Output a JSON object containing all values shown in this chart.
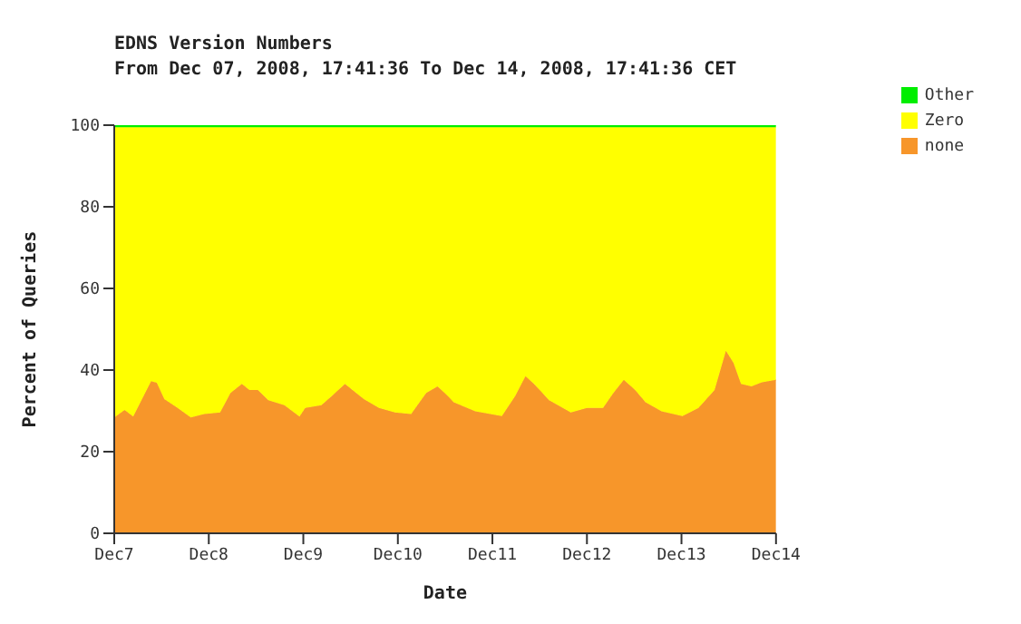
{
  "chart_data": {
    "type": "area",
    "title": "EDNS Version Numbers",
    "subtitle": "From Dec 07, 2008, 17:41:36 To Dec 14, 2008, 17:41:36 CET",
    "xlabel": "Date",
    "ylabel": "Percent of Queries",
    "stacked": true,
    "x": [
      "2008-12-07T00:00",
      "2008-12-07T02:38",
      "2008-12-07T04:48",
      "2008-12-07T07:26",
      "2008-12-07T09:22",
      "2008-12-07T10:48",
      "2008-12-07T12:43",
      "2008-12-07T16:05",
      "2008-12-07T19:26",
      "2008-12-07T22:48",
      "2008-12-08T02:53",
      "2008-12-08T05:31",
      "2008-12-08T08:24",
      "2008-12-08T10:19",
      "2008-12-08T12:29",
      "2008-12-08T15:07",
      "2008-12-08T19:12",
      "2008-12-08T23:02",
      "2008-12-09T00:29",
      "2008-12-09T04:34",
      "2008-12-09T07:12",
      "2008-12-09T10:34",
      "2008-12-09T12:29",
      "2008-12-09T15:22",
      "2008-12-09T19:12",
      "2008-12-09T23:17",
      "2008-12-10T03:22",
      "2008-12-10T07:12",
      "2008-12-10T10:05",
      "2008-12-10T12:43",
      "2008-12-10T14:10",
      "2008-12-10T19:41",
      "2008-12-11T02:24",
      "2008-12-11T05:46",
      "2008-12-11T08:24",
      "2008-12-11T10:34",
      "2008-12-11T14:24",
      "2008-12-11T19:55",
      "2008-12-12T00:00",
      "2008-12-12T04:05",
      "2008-12-12T06:43",
      "2008-12-12T09:22",
      "2008-12-12T12:14",
      "2008-12-12T14:53",
      "2008-12-12T18:58",
      "2008-12-13T00:14",
      "2008-12-13T04:19",
      "2008-12-13T08:24",
      "2008-12-13T11:17",
      "2008-12-13T13:12",
      "2008-12-13T15:07",
      "2008-12-13T17:46",
      "2008-12-13T20:24",
      "2008-12-14T00:00"
    ],
    "series": [
      {
        "name": "none",
        "color": "#f7962a",
        "values": [
          28.4,
          30.2,
          28.6,
          33.6,
          37.3,
          36.9,
          32.9,
          30.7,
          28.4,
          29.2,
          29.6,
          34.4,
          36.6,
          35.1,
          35.1,
          32.6,
          31.4,
          28.6,
          30.7,
          31.4,
          33.6,
          36.6,
          35.1,
          32.9,
          30.7,
          29.6,
          29.2,
          34.4,
          36,
          33.6,
          32.1,
          29.9,
          28.7,
          33.6,
          38.5,
          36.6,
          32.6,
          29.6,
          30.7,
          30.7,
          34.4,
          37.6,
          35.1,
          32.1,
          29.9,
          28.7,
          30.7,
          35.1,
          44.7,
          41.8,
          36.6,
          36,
          37,
          37.6
        ]
      },
      {
        "name": "Zero",
        "color": "#ffff00",
        "values": [
          71.1,
          69.3,
          70.9,
          65.9,
          62.2,
          62.6,
          66.6,
          68.8,
          71.1,
          70.3,
          69.9,
          65.1,
          62.9,
          64.4,
          64.4,
          66.9,
          68.1,
          70.9,
          68.8,
          68.1,
          65.9,
          62.9,
          64.4,
          66.6,
          68.8,
          69.9,
          70.3,
          65.1,
          63.5,
          65.9,
          67.4,
          69.6,
          70.8,
          65.9,
          61,
          62.9,
          66.9,
          69.9,
          68.8,
          68.8,
          65.1,
          61.9,
          64.4,
          67.4,
          69.6,
          70.8,
          68.8,
          64.4,
          54.8,
          57.7,
          62.9,
          63.5,
          62.5,
          61.9
        ]
      },
      {
        "name": "Other",
        "color": "#00ee00",
        "values": [
          0.5,
          0.5,
          0.5,
          0.5,
          0.5,
          0.5,
          0.5,
          0.5,
          0.5,
          0.5,
          0.5,
          0.5,
          0.5,
          0.5,
          0.5,
          0.5,
          0.5,
          0.5,
          0.5,
          0.5,
          0.5,
          0.5,
          0.5,
          0.5,
          0.5,
          0.5,
          0.5,
          0.5,
          0.5,
          0.5,
          0.5,
          0.5,
          0.5,
          0.5,
          0.5,
          0.5,
          0.5,
          0.5,
          0.5,
          0.5,
          0.5,
          0.5,
          0.5,
          0.5,
          0.5,
          0.5,
          0.5,
          0.5,
          0.5,
          0.5,
          0.5,
          0.5,
          0.5,
          0.5
        ]
      }
    ],
    "xlim": [
      "2008-12-07",
      "2008-12-14"
    ],
    "xticks": [
      {
        "value": "2008-12-07",
        "label": "Dec7"
      },
      {
        "value": "2008-12-08",
        "label": "Dec8"
      },
      {
        "value": "2008-12-09",
        "label": "Dec9"
      },
      {
        "value": "2008-12-10",
        "label": "Dec10"
      },
      {
        "value": "2008-12-11",
        "label": "Dec11"
      },
      {
        "value": "2008-12-12",
        "label": "Dec12"
      },
      {
        "value": "2008-12-13",
        "label": "Dec13"
      },
      {
        "value": "2008-12-14",
        "label": "Dec14"
      }
    ],
    "ylim": [
      0,
      100
    ],
    "yticks": [
      0,
      20,
      40,
      60,
      80,
      100
    ],
    "grid": false,
    "legend": "top right"
  }
}
